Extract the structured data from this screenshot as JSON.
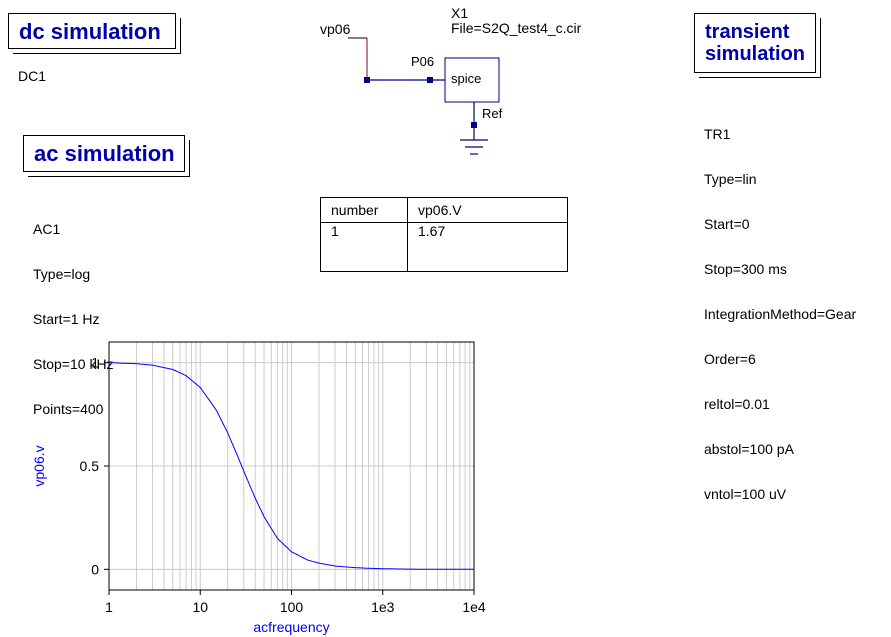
{
  "dc_sim": {
    "title": "dc simulation",
    "name": "DC1"
  },
  "ac_sim": {
    "title": "ac simulation",
    "name": "AC1",
    "params": [
      "Type=log",
      "Start=1 Hz",
      "Stop=10 kHz",
      "Points=400"
    ]
  },
  "tr_sim": {
    "title_l1": "transient",
    "title_l2": "simulation",
    "name": "TR1",
    "params": [
      "Type=lin",
      "Start=0",
      "Stop=300 ms",
      "IntegrationMethod=Gear",
      "Order=6",
      "reltol=0.01",
      "abstol=100 pA",
      "vntol=100 uV"
    ]
  },
  "schematic": {
    "component_name": "X1",
    "file": "File=S2Q_test4_c.cir",
    "block_label": "spice",
    "port_p06": "P06",
    "port_ref": "Ref",
    "wire_label": "vp06"
  },
  "result_table": {
    "headers": [
      "number",
      "vp06.V"
    ],
    "rows": [
      [
        "1",
        "1.67"
      ]
    ]
  },
  "chart_data": {
    "type": "line",
    "xscale": "log",
    "xlim": [
      1,
      10000
    ],
    "ylim": [
      -0.1,
      1.1
    ],
    "xlabel": "acfrequency",
    "ylabel": "vp06.v",
    "xticks": [
      "1",
      "10",
      "100",
      "1e3",
      "1e4"
    ],
    "yticks": [
      "0",
      "0.5",
      "1"
    ],
    "grid": true,
    "series": [
      {
        "color": "#0000ff",
        "x": [
          1,
          2,
          3,
          5,
          7,
          10,
          15,
          20,
          25,
          30,
          40,
          50,
          70,
          100,
          150,
          200,
          300,
          500,
          700,
          1000,
          2000,
          5000,
          10000
        ],
        "y": [
          1.0,
          0.995,
          0.988,
          0.967,
          0.937,
          0.88,
          0.77,
          0.66,
          0.56,
          0.475,
          0.345,
          0.255,
          0.15,
          0.085,
          0.045,
          0.03,
          0.016,
          0.008,
          0.005,
          0.003,
          0.001,
          0.0003,
          0.0001
        ]
      }
    ]
  },
  "colors": {
    "accent": "#0000aa",
    "plot_line": "#0000ff",
    "wire": "#000080",
    "wire_label": "#800040"
  }
}
